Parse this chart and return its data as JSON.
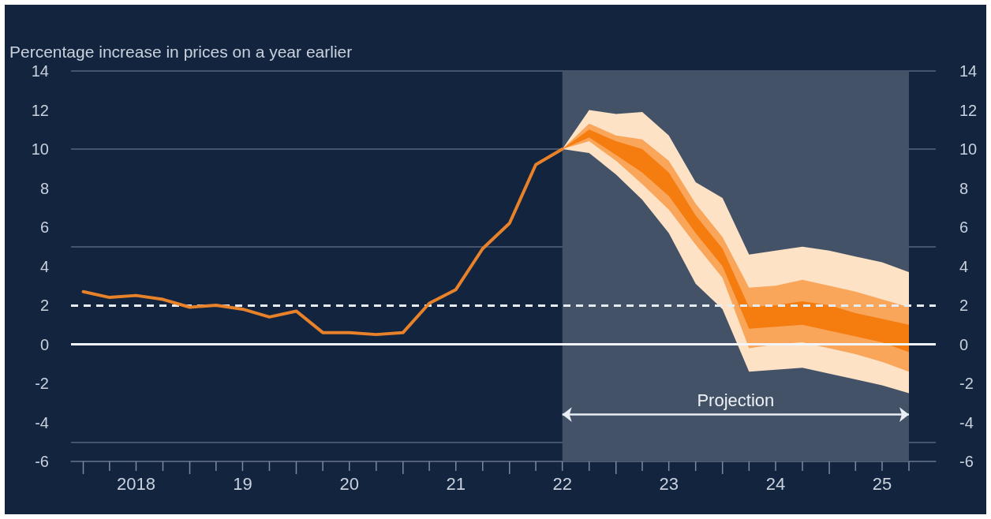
{
  "chart_data": {
    "type": "line",
    "ylabel": "Percentage increase in prices on a year earlier",
    "xlim": [
      "2017-11-20",
      "2026-01"
    ],
    "xticks": [
      {
        "value": "2018-01",
        "label": null
      },
      {
        "value": "2018-04",
        "label": null
      },
      {
        "value": "2018-07",
        "label": "2018"
      },
      {
        "value": "2018-10",
        "label": null
      },
      {
        "value": "2019-01",
        "label": null
      },
      {
        "value": "2019-04",
        "label": null
      },
      {
        "value": "2019-07",
        "label": "19"
      },
      {
        "value": "2019-10",
        "label": null
      },
      {
        "value": "2020-01",
        "label": null
      },
      {
        "value": "2020-04",
        "label": null
      },
      {
        "value": "2020-07",
        "label": "20"
      },
      {
        "value": "2020-10",
        "label": null
      },
      {
        "value": "2021-01",
        "label": null
      },
      {
        "value": "2021-04",
        "label": null
      },
      {
        "value": "2021-07",
        "label": "21"
      },
      {
        "value": "2021-10",
        "label": null
      },
      {
        "value": "2022-01",
        "label": null
      },
      {
        "value": "2022-04",
        "label": null
      },
      {
        "value": "2022-07",
        "label": "22"
      },
      {
        "value": "2022-10",
        "label": null
      },
      {
        "value": "2023-01",
        "label": null
      },
      {
        "value": "2023-04",
        "label": null
      },
      {
        "value": "2023-07",
        "label": "23"
      },
      {
        "value": "2023-10",
        "label": null
      },
      {
        "value": "2024-01",
        "label": null
      },
      {
        "value": "2024-04",
        "label": null
      },
      {
        "value": "2024-07",
        "label": "24"
      },
      {
        "value": "2024-10",
        "label": null
      },
      {
        "value": "2025-01",
        "label": null
      },
      {
        "value": "2025-04",
        "label": null
      },
      {
        "value": "2025-07",
        "label": "25"
      },
      {
        "value": "2025-10",
        "label": null
      }
    ],
    "ylim": [
      -6,
      14
    ],
    "yticks": [
      -6,
      -4,
      -2,
      0,
      2,
      4,
      6,
      8,
      10,
      12,
      14
    ],
    "y2lim": [
      -6,
      14
    ],
    "y2ticks": [
      -6,
      -4,
      -2,
      0,
      2,
      4,
      6,
      8,
      10,
      12,
      14
    ],
    "grid": "y",
    "marker": "none",
    "series": [
      {
        "type": "area",
        "color": "#fde2c6",
        "x": [
          "2022-07",
          "2022-10",
          "2023-01",
          "2023-04",
          "2023-07",
          "2023-10",
          "2024-01",
          "2024-04",
          "2024-07",
          "2024-10",
          "2025-01",
          "2025-04",
          "2025-07",
          "2025-10"
        ],
        "values": [
          null,
          null,
          null,
          null,
          null,
          null,
          null,
          null,
          null,
          null,
          null,
          null,
          null,
          null
        ],
        "upper": [
          10.0,
          12.0,
          11.8,
          11.9,
          10.7,
          8.3,
          7.5,
          4.6,
          4.8,
          5.0,
          4.8,
          4.5,
          4.2,
          3.7
        ],
        "lower": [
          10.0,
          9.8,
          8.7,
          7.4,
          5.7,
          3.1,
          1.8,
          -1.4,
          -1.3,
          -1.2,
          -1.5,
          -1.8,
          -2.1,
          -2.5
        ]
      },
      {
        "type": "area",
        "color": "#f9a55a",
        "x": [
          "2022-07",
          "2022-10",
          "2023-01",
          "2023-04",
          "2023-07",
          "2023-10",
          "2024-01",
          "2024-04",
          "2024-07",
          "2024-10",
          "2025-01",
          "2025-04",
          "2025-07",
          "2025-10"
        ],
        "values": [
          null,
          null,
          null,
          null,
          null,
          null,
          null,
          null,
          null,
          null,
          null,
          null,
          null,
          null
        ],
        "upper": [
          10.0,
          11.3,
          10.7,
          10.5,
          9.4,
          7.2,
          5.5,
          2.9,
          3.0,
          3.3,
          3.0,
          2.7,
          2.3,
          1.9
        ],
        "lower": [
          10.0,
          10.4,
          9.4,
          8.2,
          6.9,
          5.1,
          3.4,
          -0.2,
          0.0,
          0.1,
          -0.2,
          -0.5,
          -0.9,
          -1.4
        ]
      },
      {
        "type": "area",
        "color": "#f57c0f",
        "x": [
          "2022-07",
          "2022-10",
          "2023-01",
          "2023-04",
          "2023-07",
          "2023-10",
          "2024-01",
          "2024-04",
          "2024-07",
          "2024-10",
          "2025-01",
          "2025-04",
          "2025-07",
          "2025-10"
        ],
        "values": [
          null,
          null,
          null,
          null,
          null,
          null,
          null,
          null,
          null,
          null,
          null,
          null,
          null,
          null
        ],
        "upper": [
          10.0,
          11.0,
          10.4,
          10.0,
          8.8,
          6.6,
          4.9,
          1.9,
          2.0,
          2.2,
          2.0,
          1.6,
          1.3,
          1.0
        ],
        "lower": [
          10.0,
          10.6,
          9.7,
          8.8,
          7.6,
          5.7,
          4.0,
          0.8,
          0.9,
          1.0,
          0.7,
          0.4,
          0.1,
          -0.4
        ]
      },
      {
        "color": "#e8822a",
        "x": [
          "2018-01",
          "2018-04",
          "2018-07",
          "2018-10",
          "2019-01",
          "2019-04",
          "2019-07",
          "2019-10",
          "2020-01",
          "2020-04",
          "2020-07",
          "2020-10",
          "2021-01",
          "2021-04",
          "2021-07",
          "2021-10",
          "2022-01",
          "2022-04",
          "2022-07"
        ],
        "values": [
          2.7,
          2.4,
          2.5,
          2.3,
          1.9,
          2.0,
          1.8,
          1.4,
          1.7,
          0.6,
          0.6,
          0.5,
          0.6,
          2.1,
          2.8,
          4.9,
          6.2,
          9.2,
          10.0
        ]
      }
    ],
    "ref_lines": [
      {
        "axis": "y",
        "value": 2,
        "line_style": "dashed",
        "color": "#e6ecf4"
      },
      {
        "axis": "y",
        "value": 0,
        "line_style": "solid",
        "color": "#f2f5f9"
      }
    ],
    "bands": [
      {
        "axis": "x",
        "from": "2022-07",
        "to": "2025-10",
        "label": "Projection",
        "color": "#435267"
      }
    ]
  }
}
